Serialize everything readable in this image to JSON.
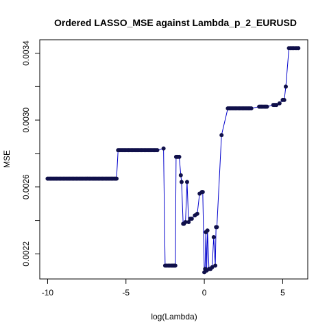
{
  "chart_data": {
    "type": "line",
    "title": "Ordered LASSO_MSE against Lambda_p_2_EURUSD",
    "xlabel": "log(Lambda)",
    "ylabel": "MSE",
    "xlim": [
      -10.5,
      6.6
    ],
    "ylim": [
      0.00205,
      0.00348
    ],
    "x_ticks": [
      -10,
      -5,
      0,
      5
    ],
    "x_tick_labels": [
      "-10",
      "-5",
      "0",
      "5"
    ],
    "y_ticks": [
      0.0022,
      0.0026,
      0.003,
      0.0034
    ],
    "y_tick_labels": [
      "0.0022",
      "0.0026",
      "0.0030",
      "0.0034"
    ],
    "line_color": "#0000cc",
    "point_color": "#10104a",
    "grid": false,
    "legend": "none",
    "series": [
      {
        "x": [
          -10.0,
          -9.5,
          -9.0,
          -8.5,
          -8.0,
          -7.5,
          -7.0,
          -6.5,
          -6.0,
          -5.6,
          -5.5,
          -5.0,
          -4.5,
          -4.0,
          -3.5,
          -3.0,
          -2.6,
          -2.5,
          -2.3,
          -2.1,
          -1.85,
          -1.8,
          -1.6,
          -1.5,
          -1.45,
          -1.35,
          -1.3,
          -1.2,
          -1.1,
          -1.0,
          -0.9,
          -0.8,
          -0.6,
          -0.45,
          -0.3,
          -0.15,
          -0.1,
          0.0,
          0.05,
          0.1,
          0.15,
          0.2,
          0.3,
          0.4,
          0.5,
          0.6,
          0.7,
          0.75,
          0.8,
          1.1,
          1.5,
          2.0,
          2.5,
          3.0,
          3.5,
          4.0,
          4.4,
          4.6,
          4.8,
          5.0,
          5.1,
          5.2,
          5.4,
          5.6,
          5.8,
          6.0
        ],
        "y": [
          0.00265,
          0.00265,
          0.00265,
          0.00265,
          0.00265,
          0.00265,
          0.00265,
          0.00265,
          0.00265,
          0.00265,
          0.00282,
          0.00282,
          0.00282,
          0.00282,
          0.00282,
          0.00282,
          0.00283,
          0.00213,
          0.00213,
          0.00213,
          0.00213,
          0.00278,
          0.00278,
          0.00267,
          0.00263,
          0.00238,
          0.00238,
          0.00239,
          0.00263,
          0.00239,
          0.00241,
          0.00241,
          0.00243,
          0.00244,
          0.00256,
          0.00257,
          0.00257,
          0.00209,
          0.00211,
          0.00233,
          0.0021,
          0.00234,
          0.00211,
          0.00211,
          0.00212,
          0.0023,
          0.00213,
          0.00236,
          0.00236,
          0.00291,
          0.00307,
          0.00307,
          0.00307,
          0.00307,
          0.00308,
          0.00308,
          0.00309,
          0.00309,
          0.0031,
          0.00312,
          0.00312,
          0.0032,
          0.00343,
          0.00343,
          0.00343,
          0.00343
        ]
      }
    ]
  }
}
